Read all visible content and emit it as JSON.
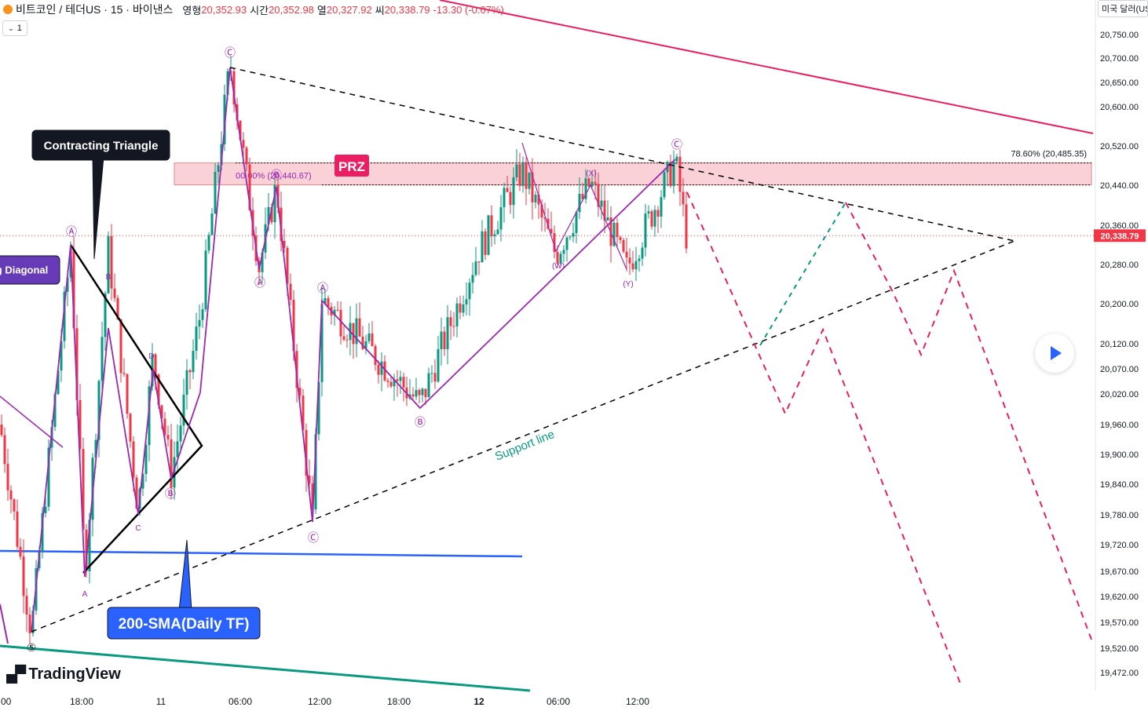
{
  "header": {
    "symbol": "비트코인 / 테더US · 15 · 바이낸스",
    "open_label": "영",
    "open_prefix": "형",
    "open_value": "20,352.93",
    "high_label": "시간",
    "high_value": "20,352.98",
    "low_label": "열",
    "low_value": "20,327.92",
    "close_label": "씨",
    "close_value": "20,338.79",
    "change_value": "-13.30 (-0.07%)",
    "interval_button": "1",
    "currency": "미국 달러(USD)"
  },
  "colors": {
    "up": "#089981",
    "down": "#f23645",
    "wave": "#9c27b0",
    "projection": "#e91e63",
    "projection_up": "#089981",
    "sma": "#2962ff",
    "prz_fill": "#f8c9d0",
    "prz_label": "#e91e63",
    "pink_line": "#e91e63",
    "green_line": "#089981"
  },
  "chart_data": {
    "type": "candlestick",
    "y_axis_ticks": [
      "20,750.00",
      "20,700.00",
      "20,650.00",
      "20,600.00",
      "20,520.00",
      "20,440.00",
      "20,360.00",
      "20,280.00",
      "20,200.00",
      "20,120.00",
      "20,070.00",
      "20,020.00",
      "19,960.00",
      "19,900.00",
      "19,840.00",
      "19,780.00",
      "19,720.00",
      "19,670.00",
      "19,620.00",
      "19,570.00",
      "19,520.00",
      "19,472.00"
    ],
    "y_axis_tick_values": [
      20750,
      20700,
      20650,
      20600,
      20520,
      20440,
      20360,
      20280,
      20200,
      20120,
      20070,
      20020,
      19960,
      19900,
      19840,
      19780,
      19720,
      19670,
      19620,
      19570,
      19520,
      19472
    ],
    "last_price": "20,338.79",
    "last_price_value": 20338.79,
    "x_axis_ticks": [
      ":00",
      "18:00",
      "11",
      "06:00",
      "12:00",
      "18:00",
      "12",
      "06:00",
      "12:00"
    ],
    "x_axis_bold": [
      false,
      false,
      false,
      false,
      false,
      false,
      true,
      false,
      false
    ],
    "key_points": [
      {
        "label": "⑤",
        "price": 19550
      },
      {
        "label": "A",
        "price": 20315
      },
      {
        "label": "A",
        "price": 19660
      },
      {
        "label": "B",
        "price": 20310
      },
      {
        "label": "C",
        "price": 19790
      },
      {
        "label": "D",
        "price": 20100
      },
      {
        "label": "B",
        "price": 19860
      },
      {
        "label": "C",
        "price": 20690
      },
      {
        "label": "A",
        "price": 20275
      },
      {
        "label": "B",
        "price": 20440
      },
      {
        "label": "C",
        "price": 19765
      },
      {
        "label": "A",
        "price": 20210
      },
      {
        "label": "B",
        "price": 20000
      },
      {
        "label": "W",
        "price": 20300
      },
      {
        "label": "X",
        "price": 20445
      },
      {
        "label": "Y",
        "price": 20270
      },
      {
        "label": "C",
        "price": 20490
      }
    ],
    "prz": {
      "label": "PRZ",
      "top": 20485.35,
      "bottom": 20440.67
    },
    "fib_labels": [
      "78.60% (20,485.35)",
      "00.00% (20,440.67)"
    ],
    "annotations": [
      "Contracting Triangle",
      "g Diagonal",
      "200-SMA(Daily TF)",
      "Support line"
    ],
    "wave_labels": {
      "c1": "Ⓒ",
      "a1": "Ⓐ",
      "b1": "Ⓑ",
      "five": "⑤",
      "a_small": "A",
      "b_small": "B",
      "c_small": "C",
      "d_small": "D",
      "a2": "Ⓐ",
      "b2": "Ⓑ",
      "c2": "Ⓒ",
      "a3": "Ⓐ",
      "b3": "Ⓑ",
      "c3": "Ⓒ",
      "w": "(W)",
      "x": "(X)",
      "y": "(Y)",
      "c4": "Ⓒ"
    }
  }
}
